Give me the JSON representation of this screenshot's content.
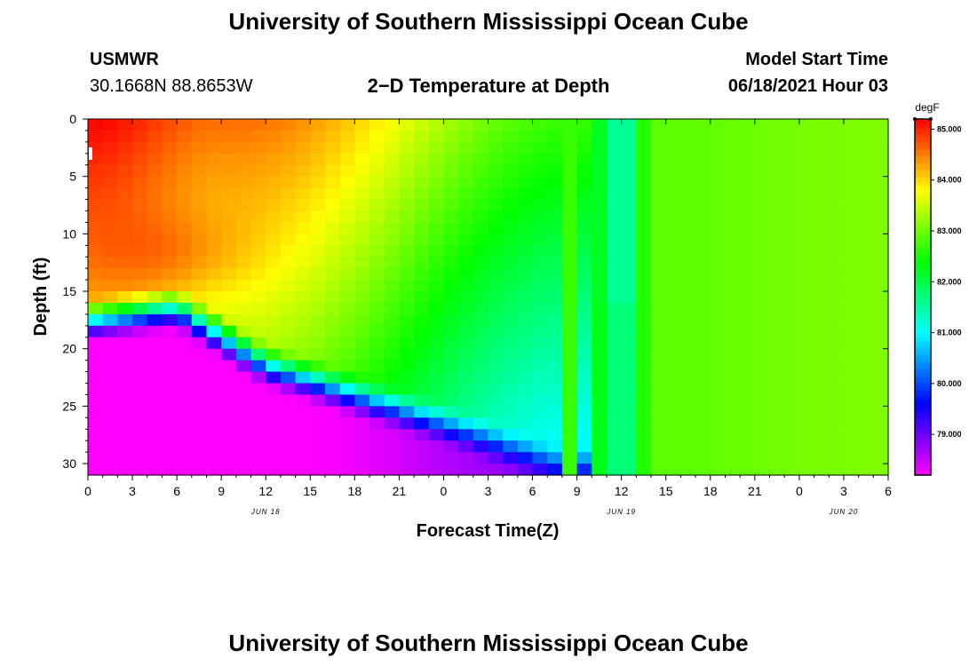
{
  "header": {
    "title": "University of Southern Mississippi Ocean Cube",
    "station": "USMWR",
    "coordinates": "30.1668N  88.8653W",
    "plot_title": "2−D Temperature at Depth",
    "model_label": "Model Start Time",
    "model_time": "06/18/2021 Hour 03"
  },
  "footer": {
    "title": "University of Southern Mississippi Ocean Cube"
  },
  "chart_data": {
    "type": "heatmap",
    "title": "2−D Temperature at Depth",
    "xlabel": "Forecast Time(Z)",
    "ylabel": "Depth (ft)",
    "x_range_hours": [
      0,
      54
    ],
    "x_ticks": [
      "0",
      "3",
      "6",
      "9",
      "12",
      "15",
      "18",
      "21",
      "0",
      "3",
      "6",
      "9",
      "12",
      "15",
      "18",
      "21",
      "0",
      "3",
      "6"
    ],
    "date_labels": [
      {
        "text": "JUN 18",
        "hour": 12
      },
      {
        "text": "JUN 19",
        "hour": 36
      },
      {
        "text": "JUN 20",
        "hour": 51
      }
    ],
    "y_range_ft": [
      0,
      31
    ],
    "y_ticks": [
      "0",
      "5",
      "10",
      "15",
      "20",
      "25",
      "30"
    ],
    "colorbar": {
      "unit": "degF",
      "min": 78.2,
      "max": 85.2,
      "labels": [
        "85.000",
        "84.000",
        "83.000",
        "82.000",
        "81.000",
        "80.000",
        "79.000"
      ],
      "label_values": [
        85,
        84,
        83,
        82,
        81,
        80,
        79
      ]
    },
    "field_description_values": {
      "surface_max_degF": 85.2,
      "bottom_min_degF": 78.2,
      "cold_column_hours": [
        34,
        37
      ],
      "cold_column_degF": 81.6,
      "late_period_degF": 83.0
    }
  }
}
